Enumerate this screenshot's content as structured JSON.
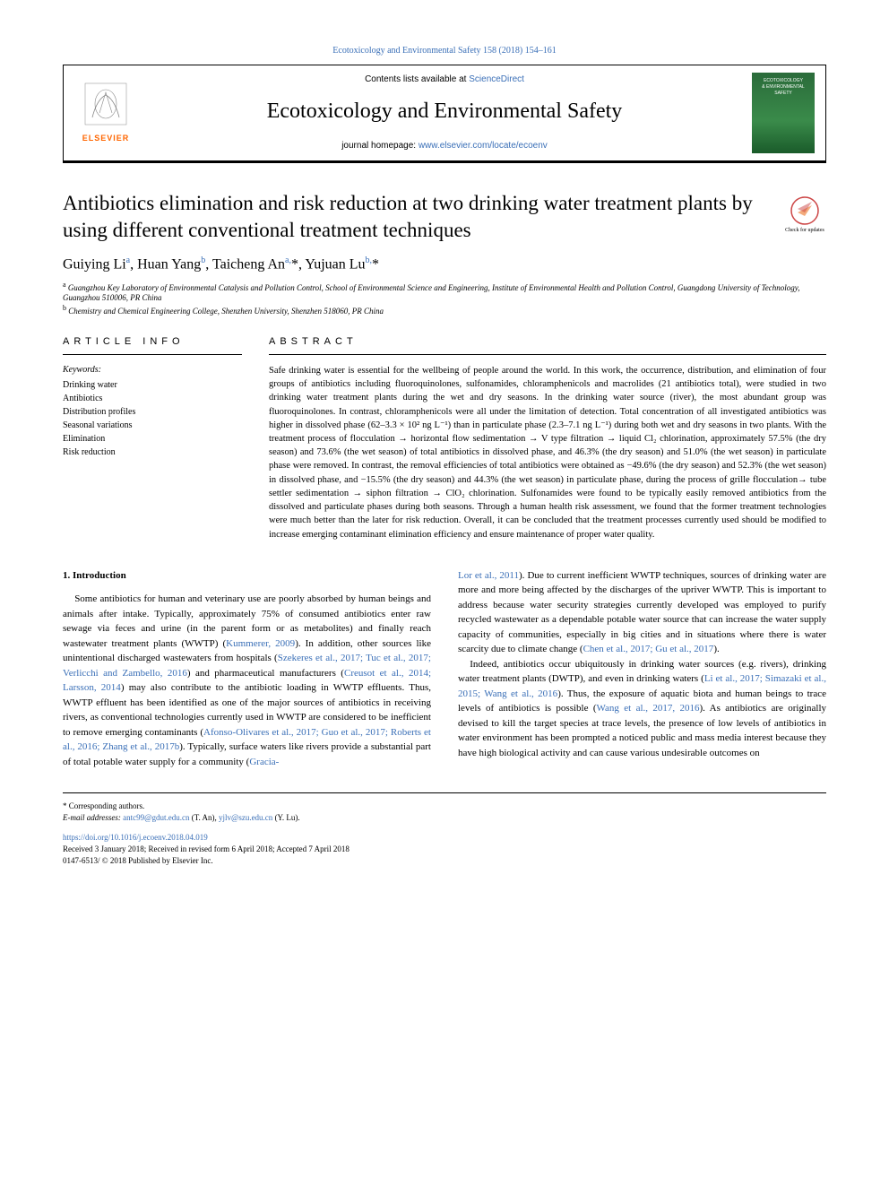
{
  "citation": "Ecotoxicology and Environmental Safety 158 (2018) 154–161",
  "header": {
    "contents_prefix": "Contents lists available at ",
    "contents_link": "ScienceDirect",
    "journal": "Ecotoxicology and Environmental Safety",
    "homepage_prefix": "journal homepage: ",
    "homepage_link": "www.elsevier.com/locate/ecoenv",
    "elsevier": "ELSEVIER",
    "cover_line1": "ECOTOXICOLOGY",
    "cover_line2": "& ENVIRONMENTAL",
    "cover_line3": "SAFETY"
  },
  "title": "Antibiotics elimination and risk reduction at two drinking water treatment plants by using different conventional treatment techniques",
  "updates_badge": "Check for updates",
  "authors_html": "Guiying Li<sup>a</sup>, Huan Yang<sup>b</sup>, Taicheng An<sup>a,</sup>*, Yujuan Lu<sup>b,</sup>*",
  "affiliations": {
    "a": "a Guangzhou Key Laboratory of Environmental Catalysis and Pollution Control, School of Environmental Science and Engineering, Institute of Environmental Health and Pollution Control, Guangdong University of Technology, Guangzhou 510006, PR China",
    "b": "b Chemistry and Chemical Engineering College, Shenzhen University, Shenzhen 518060, PR China"
  },
  "article_info_label": "ARTICLE INFO",
  "abstract_label": "ABSTRACT",
  "keywords_label": "Keywords:",
  "keywords": [
    "Drinking water",
    "Antibiotics",
    "Distribution profiles",
    "Seasonal variations",
    "Elimination",
    "Risk reduction"
  ],
  "abstract": "Safe drinking water is essential for the wellbeing of people around the world. In this work, the occurrence, distribution, and elimination of four groups of antibiotics including fluoroquinolones, sulfonamides, chloramphenicols and macrolides (21 antibiotics total), were studied in two drinking water treatment plants during the wet and dry seasons. In the drinking water source (river), the most abundant group was fluoroquinolones. In contrast, chloramphenicols were all under the limitation of detection. Total concentration of all investigated antibiotics was higher in dissolved phase (62–3.3 × 10² ng L⁻¹) than in particulate phase (2.3–7.1 ng L⁻¹) during both wet and dry seasons in two plants. With the treatment process of flocculation → horizontal flow sedimentation → V type filtration → liquid Cl₂ chlorination, approximately 57.5% (the dry season) and 73.6% (the wet season) of total antibiotics in dissolved phase, and 46.3% (the dry season) and 51.0% (the wet season) in particulate phase were removed. In contrast, the removal efficiencies of total antibiotics were obtained as −49.6% (the dry season) and 52.3% (the wet season) in dissolved phase, and −15.5% (the dry season) and 44.3% (the wet season) in particulate phase, during the process of grille flocculation→ tube settler sedimentation → siphon filtration → ClO₂ chlorination. Sulfonamides were found to be typically easily removed antibiotics from the dissolved and particulate phases during both seasons. Through a human health risk assessment, we found that the former treatment technologies were much better than the later for risk reduction. Overall, it can be concluded that the treatment processes currently used should be modified to increase emerging contaminant elimination efficiency and ensure maintenance of proper water quality.",
  "intro_heading": "1. Introduction",
  "intro_paragraphs": [
    "Some antibiotics for human and veterinary use are poorly absorbed by human beings and animals after intake. Typically, approximately 75% of consumed antibiotics enter raw sewage via feces and urine (in the parent form or as metabolites) and finally reach wastewater treatment plants (WWTP) (<span class=\"ref-link\">Kummerer, 2009</span>). In addition, other sources like unintentional discharged wastewaters from hospitals (<span class=\"ref-link\">Szekeres et al., 2017; Tuc et al., 2017; Verlicchi and Zambello, 2016</span>) and pharmaceutical manufacturers (<span class=\"ref-link\">Creusot et al., 2014; Larsson, 2014</span>) may also contribute to the antibiotic loading in WWTP effluents. Thus, WWTP effluent has been identified as one of the major sources of antibiotics in receiving rivers, as conventional technologies currently used in WWTP are considered to be inefficient to remove emerging contaminants (<span class=\"ref-link\">Afonso-Olivares et al., 2017; Guo et al., 2017; Roberts et al., 2016; Zhang et al., 2017b</span>). Typically, surface waters like rivers provide a substantial part of total potable water supply for a community (<span class=\"ref-link\">Gracia-</span>",
    "<span class=\"ref-link\">Lor et al., 2011</span>). Due to current inefficient WWTP techniques, sources of drinking water are more and more being affected by the discharges of the upriver WWTP. This is important to address because water security strategies currently developed was employed to purify recycled wastewater as a dependable potable water source that can increase the water supply capacity of communities, especially in big cities and in situations where there is water scarcity due to climate change (<span class=\"ref-link\">Chen et al., 2017; Gu et al., 2017</span>).",
    "Indeed, antibiotics occur ubiquitously in drinking water sources (e.g. rivers), drinking water treatment plants (DWTP), and even in drinking waters (<span class=\"ref-link\">Li et al., 2017; Simazaki et al., 2015; Wang et al., 2016</span>). Thus, the exposure of aquatic biota and human beings to trace levels of antibiotics is possible (<span class=\"ref-link\">Wang et al., 2017, 2016</span>). As antibiotics are originally devised to kill the target species at trace levels, the presence of low levels of antibiotics in water environment has been prompted a noticed public and mass media interest because they have high biological activity and can cause various undesirable outcomes on"
  ],
  "footer": {
    "corresponding": "* Corresponding authors.",
    "email_label": "E-mail addresses: ",
    "email1": "antc99@gdut.edu.cn",
    "email1_name": " (T. An), ",
    "email2": "yjlv@szu.edu.cn",
    "email2_name": " (Y. Lu).",
    "doi": "https://doi.org/10.1016/j.ecoenv.2018.04.019",
    "received": "Received 3 January 2018; Received in revised form 6 April 2018; Accepted 7 April 2018",
    "copyright": "0147-6513/ © 2018 Published by Elsevier Inc."
  },
  "colors": {
    "link": "#3a6fb7",
    "elsevier_orange": "#ff6600",
    "text": "#000000",
    "cover_green": "#2a6b3a"
  }
}
